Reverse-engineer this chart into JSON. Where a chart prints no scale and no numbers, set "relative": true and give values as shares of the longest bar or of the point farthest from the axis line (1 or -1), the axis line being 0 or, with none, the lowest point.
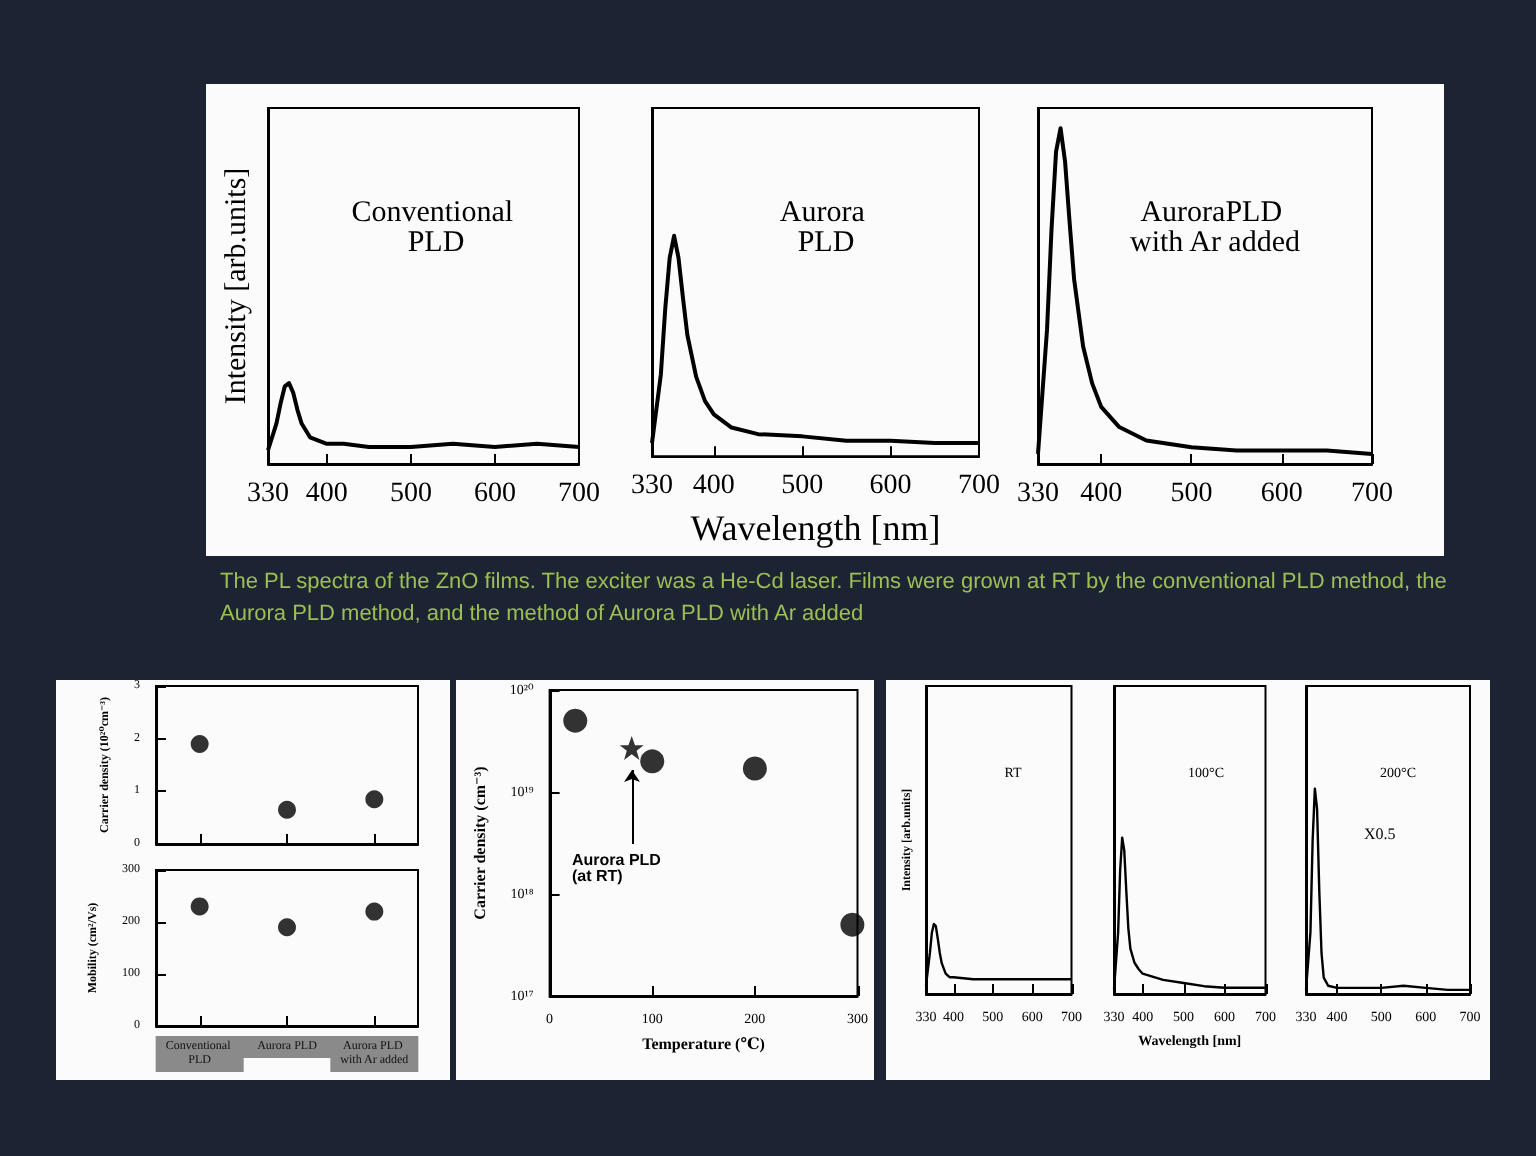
{
  "chart_data": [
    {
      "type": "line",
      "title": "Conventional PLD",
      "ylabel": "Intensity [arb.units]",
      "relative": true,
      "xlim": [
        330,
        700
      ],
      "xticks": [
        330,
        400,
        500,
        600,
        700
      ],
      "tick_labels": "x",
      "series": [
        {
          "color": "#000000",
          "x": [
            330,
            340,
            345,
            350,
            355,
            360,
            365,
            370,
            380,
            390,
            400,
            420,
            450,
            500,
            550,
            600,
            650,
            700
          ],
          "values": [
            0.17,
            0.5,
            0.75,
            0.96,
            1,
            0.88,
            0.67,
            0.5,
            0.33,
            0.29,
            0.25,
            0.25,
            0.21,
            0.21,
            0.25,
            0.21,
            0.25,
            0.21
          ]
        }
      ]
    },
    {
      "type": "line",
      "title": "Aurora PLD",
      "xlabel": "Wavelength [nm]",
      "relative": true,
      "xlim": [
        330,
        700
      ],
      "xticks": [
        330,
        400,
        500,
        600,
        700
      ],
      "tick_labels": "x",
      "annotations": [
        "The PL spectra of the ZnO films. The exciter was a He-Cd laser. Films were grown at RT by the conventional PLD method, the Aurora PLD method, and the method of Aurora PLD with Ar added"
      ],
      "series": [
        {
          "color": "#000000",
          "x": [
            330,
            340,
            345,
            350,
            355,
            360,
            365,
            370,
            380,
            390,
            400,
            420,
            450,
            500,
            550,
            600,
            650,
            700
          ],
          "values": [
            0.06,
            0.37,
            0.67,
            0.9,
            1,
            0.9,
            0.72,
            0.55,
            0.36,
            0.25,
            0.19,
            0.13,
            0.1,
            0.09,
            0.07,
            0.07,
            0.06,
            0.06
          ]
        }
      ]
    },
    {
      "type": "line",
      "title": "AuroraPLD with Ar added",
      "relative": true,
      "xlim": [
        330,
        700
      ],
      "xticks": [
        330,
        400,
        500,
        600,
        700
      ],
      "tick_labels": "x",
      "series": [
        {
          "color": "#000000",
          "x": [
            330,
            340,
            345,
            350,
            355,
            360,
            365,
            370,
            380,
            390,
            400,
            420,
            450,
            500,
            550,
            600,
            650,
            700
          ],
          "values": [
            0.03,
            0.4,
            0.7,
            0.93,
            1,
            0.9,
            0.72,
            0.55,
            0.35,
            0.24,
            0.17,
            0.11,
            0.07,
            0.05,
            0.04,
            0.04,
            0.04,
            0.03
          ]
        }
      ]
    },
    {
      "type": "scatter",
      "categories": [
        "Conventional PLD",
        "Aurora PLD",
        "Aurora PLD with Ar added"
      ],
      "values": [
        1.9,
        0.65,
        0.85
      ],
      "color": "#000000",
      "marker": "circle",
      "ylabel": "Carrier density (10²⁰cm⁻³)",
      "ylim": [
        0,
        3
      ],
      "yticks": [
        0,
        1,
        2,
        3
      ],
      "tick_labels": "y"
    },
    {
      "type": "scatter",
      "categories": [
        "Conventional PLD",
        "Aurora PLD",
        "Aurora PLD with Ar added"
      ],
      "values": [
        230,
        190,
        220
      ],
      "color": "#000000",
      "marker": "circle",
      "ylabel": "Mobility (cm²/Vs)",
      "ylim": [
        0,
        300
      ],
      "yticks": [
        0,
        100,
        200,
        300
      ]
    },
    {
      "type": "scatter",
      "xlabel": "Temperature (℃)",
      "ylabel": "Carrier density (cm⁻³)",
      "log": true,
      "xlim": [
        0,
        300
      ],
      "xticks": [
        0,
        100,
        200,
        300
      ],
      "ylim": [
        1e+17,
        1e+20
      ],
      "yticks": [
        {
          "value": 1e+17,
          "label": "10¹⁷"
        },
        {
          "value": 1e+18,
          "label": "10¹⁸"
        },
        {
          "value": 1e+19,
          "label": "10¹⁹"
        },
        {
          "value": 1e+20,
          "label": "10²⁰"
        }
      ],
      "annotations": [
        "Aurora PLD (at RT)"
      ],
      "series": [
        {
          "color": "#000000",
          "marker": "circle",
          "x": [
            25,
            100,
            200,
            295
          ],
          "values": [
            5e+19,
            2e+19,
            1.7e+19,
            5e+17
          ]
        },
        {
          "color": "#000000",
          "marker": "star",
          "x": [
            80
          ],
          "values": [
            2.7e+19
          ]
        }
      ]
    },
    {
      "type": "line",
      "title": "RT",
      "ylabel": "Intensity [arb.units]",
      "relative": true,
      "xlim": [
        330,
        700
      ],
      "xticks": [
        330,
        400,
        500,
        600,
        700
      ],
      "tick_labels": "x",
      "series": [
        {
          "color": "#000000",
          "x": [
            330,
            340,
            345,
            350,
            355,
            360,
            365,
            370,
            380,
            390,
            400,
            450,
            500,
            550,
            600,
            650,
            700
          ],
          "values": [
            0.12,
            0.59,
            0.88,
            1,
            0.97,
            0.79,
            0.59,
            0.44,
            0.29,
            0.24,
            0.24,
            0.21,
            0.21,
            0.21,
            0.21,
            0.21,
            0.21
          ]
        }
      ]
    },
    {
      "type": "line",
      "title": "100°C",
      "xlabel": "Wavelength [nm]",
      "relative": true,
      "xlim": [
        330,
        700
      ],
      "xticks": [
        330,
        400,
        500,
        600,
        700
      ],
      "tick_labels": "x",
      "series": [
        {
          "color": "#000000",
          "x": [
            330,
            340,
            345,
            350,
            355,
            360,
            365,
            370,
            380,
            390,
            400,
            450,
            500,
            550,
            600,
            650,
            700
          ],
          "values": [
            0.03,
            0.39,
            0.79,
            1,
            0.92,
            0.66,
            0.42,
            0.29,
            0.2,
            0.16,
            0.13,
            0.09,
            0.07,
            0.05,
            0.04,
            0.04,
            0.04
          ]
        }
      ]
    },
    {
      "type": "line",
      "title": "200°C",
      "relative": true,
      "xlim": [
        330,
        700
      ],
      "xticks": [
        330,
        400,
        500,
        600,
        700
      ],
      "tick_labels": "x",
      "annotations": [
        "X0.5"
      ],
      "series": [
        {
          "color": "#000000",
          "x": [
            330,
            340,
            345,
            350,
            355,
            360,
            365,
            370,
            380,
            400,
            450,
            500,
            550,
            600,
            650,
            700
          ],
          "values": [
            0.02,
            0.3,
            0.75,
            1,
            0.9,
            0.5,
            0.2,
            0.08,
            0.04,
            0.03,
            0.03,
            0.03,
            0.04,
            0.03,
            0.02,
            0.02
          ]
        }
      ]
    }
  ]
}
